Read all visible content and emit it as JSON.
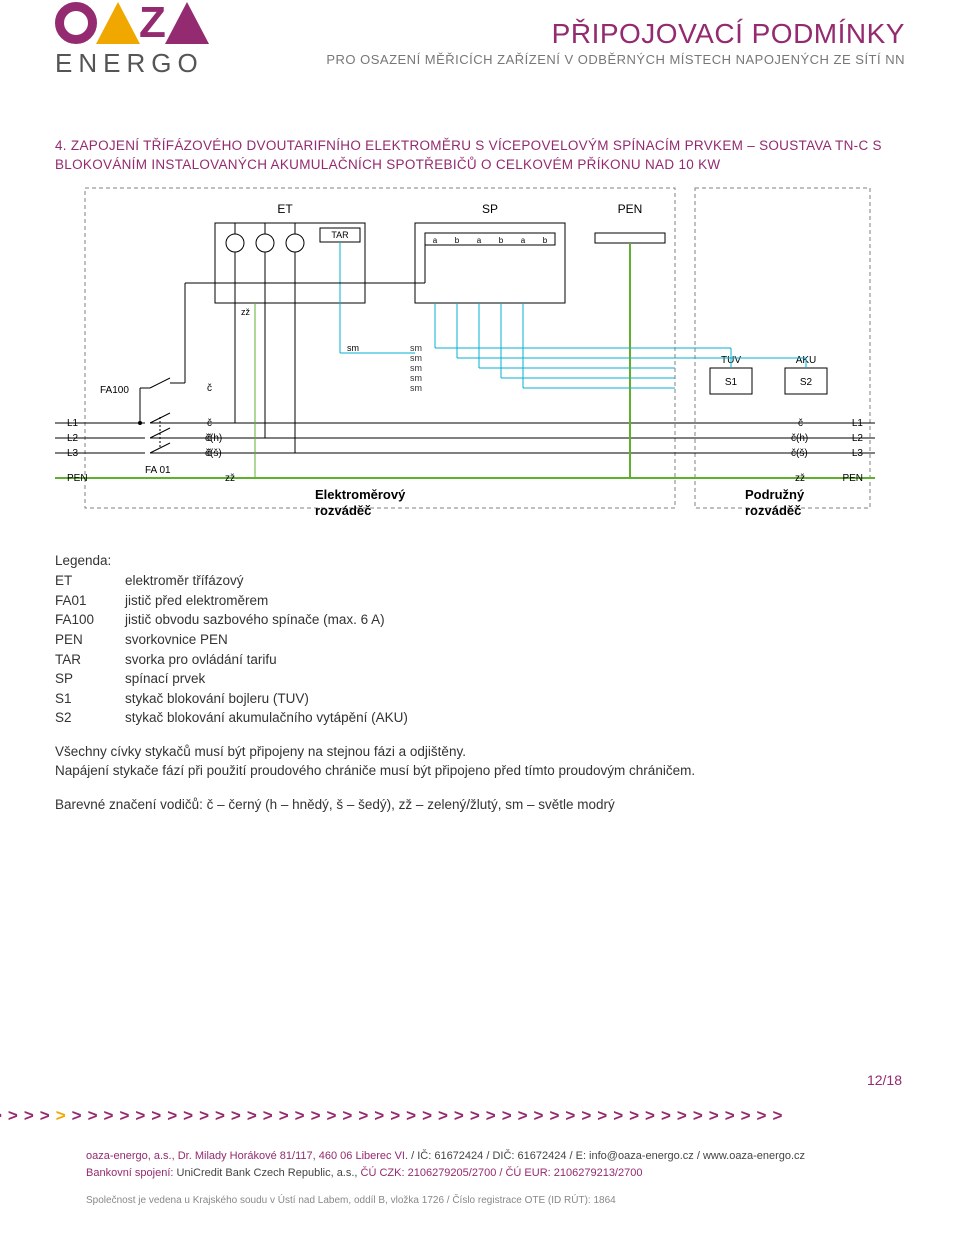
{
  "brand": {
    "name_bottom": "ENERGO"
  },
  "header": {
    "title": "PŘIPOJOVACÍ PODMÍNKY",
    "subtitle": "PRO OSAZENÍ MĚŘICÍCH ZAŘÍZENÍ V ODBĚRNÝCH MÍSTECH NAPOJENÝCH ZE SÍTÍ NN"
  },
  "section": {
    "heading": "4. ZAPOJENÍ TŘÍFÁZOVÉHO DVOUTARIFNÍHO ELEKTROMĚRU S VÍCEPOVELOVÝM SPÍNACÍM PRVKEM – SOUSTAVA TN-C S BLOKOVÁNÍM INSTALOVANÝCH AKUMULAČNÍCH SPOTŘEBIČŮ O CELKOVÉM PŘÍKONU NAD 10 KW"
  },
  "diagram": {
    "type": "wiring-schematic",
    "background_color": "#ffffff",
    "frame_color": "#808080",
    "wire_colors": {
      "black": "#000000",
      "cyan": "#00b0d0",
      "green_yellow": "#5fb030"
    },
    "labels": {
      "ET": "ET",
      "TAR": "TAR",
      "SP": "SP",
      "PEN_top": "PEN",
      "FA100": "FA100",
      "FA01": "FA 01",
      "L1": "L1",
      "L2": "L2",
      "L3": "L3",
      "PEN": "PEN",
      "TUV": "TUV",
      "AKU": "AKU",
      "S1": "S1",
      "S2": "S2",
      "sm": "sm",
      "zz": "zž",
      "c": "č",
      "c_h": "č(h)",
      "c_s": "č(š)",
      "a": "a",
      "b": "b",
      "box_left": "Elektroměrový\nrozváděč",
      "box_right": "Podružný\nrozváděč"
    },
    "bus_y": {
      "L1": 240,
      "L2": 255,
      "L3": 270,
      "PEN": 295
    },
    "font_size_label": 10,
    "font_size_caption": 13
  },
  "legend": {
    "title": "Legenda:",
    "items": [
      {
        "k": "ET",
        "v": "elektroměr třífázový"
      },
      {
        "k": "FA01",
        "v": "jistič před elektroměrem"
      },
      {
        "k": "FA100",
        "v": "jistič obvodu sazbového spínače (max. 6 A)"
      },
      {
        "k": "PEN",
        "v": "svorkovnice PEN"
      },
      {
        "k": "TAR",
        "v": "svorka pro ovládání tarifu"
      },
      {
        "k": "SP",
        "v": "spínací prvek"
      },
      {
        "k": "S1",
        "v": "stykač blokování bojleru (TUV)"
      },
      {
        "k": "S2",
        "v": "stykač blokování akumulačního vytápění (AKU)"
      }
    ],
    "para1": "Všechny cívky stykačů musí být připojeny na stejnou fázi a odjištěny.",
    "para2": "Napájení stykače fází při použití proudového chrániče musí být připojeno před tímto proudovým chráničem.",
    "para3": "Barevné značení vodičů: č – černý (h – hnědý, š – šedý), zž – zelený/žlutý, sm – světle modrý"
  },
  "page_number": "12/18",
  "footer": {
    "line1_purple": "oaza-energo, a.s., Dr. Milady Horákové 81/117, 460 06 Liberec VI.",
    "line1_rest": " / IČ: 61672424 / DIČ: 61672424 / E: info@oaza-energo.cz / www.oaza-energo.cz",
    "line2_label": "Bankovní spojení:",
    "line2_rest": " UniCredit Bank Czech Republic, a.s., ",
    "line2_purple": "ČÚ CZK: 2106279205/2700 / ČÚ EUR: 2106279213/2700",
    "line3": "Společnost je vedena u Krajského soudu v Ústí nad Labem, oddíl B, vložka 1726 / Číslo registrace OTE (ID RÚT): 1864"
  },
  "colors": {
    "brand_purple": "#942a6f",
    "brand_yellow": "#f0a800",
    "text_gray": "#555555"
  }
}
